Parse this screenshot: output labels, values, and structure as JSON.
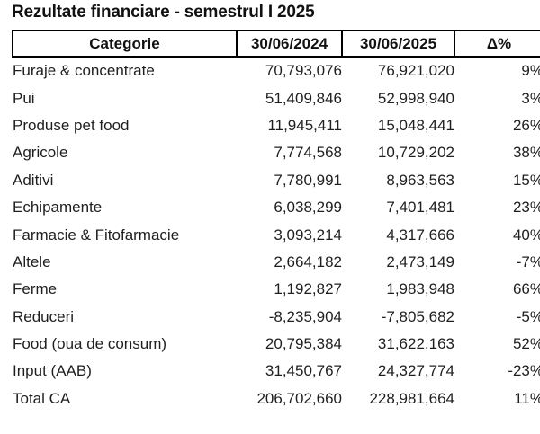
{
  "title": "Rezultate financiare - semestrul I 2025",
  "colors": {
    "background": "#ffffff",
    "text": "#1f1f1f",
    "border": "#000000"
  },
  "chart_data": {
    "type": "table",
    "title": "Rezultate financiare - semestrul I 2025",
    "columns": [
      "Categorie",
      "30/06/2024",
      "30/06/2025",
      "Δ%"
    ],
    "rows": [
      [
        "Furaje & concentrate",
        "70,793,076",
        "76,921,020",
        "9%"
      ],
      [
        "Pui",
        "51,409,846",
        "52,998,940",
        "3%"
      ],
      [
        "Produse pet food",
        "11,945,411",
        "15,048,441",
        "26%"
      ],
      [
        "Agricole",
        "7,774,568",
        "10,729,202",
        "38%"
      ],
      [
        "Aditivi",
        "7,780,991",
        "8,963,563",
        "15%"
      ],
      [
        "Echipamente",
        "6,038,299",
        "7,401,481",
        "23%"
      ],
      [
        "Farmacie & Fitofarmacie",
        "3,093,214",
        "4,317,666",
        "40%"
      ],
      [
        "Altele",
        "2,664,182",
        "2,473,149",
        "-7%"
      ],
      [
        "Ferme",
        "1,192,827",
        "1,983,948",
        "66%"
      ],
      [
        "Reduceri",
        "-8,235,904",
        "-7,805,682",
        "-5%"
      ],
      [
        "Food (oua de consum)",
        "20,795,384",
        "31,622,163",
        "52%"
      ],
      [
        "Input (AAB)",
        "31,450,767",
        "24,327,774",
        "-23%"
      ],
      [
        "Total CA",
        "206,702,660",
        "228,981,664",
        "11%"
      ]
    ],
    "layout": {
      "header_border": "boxed",
      "body_border": "none",
      "value_alignment": "right",
      "category_alignment": "left"
    }
  }
}
